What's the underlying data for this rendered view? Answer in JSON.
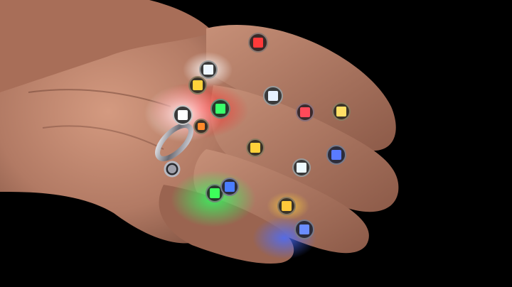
{
  "photo": {
    "subject": "hand-with-tiny-leds",
    "background_color": "#000000",
    "skin_color": "#c98e74",
    "led_count": 18,
    "leds": [
      {
        "name": "led-red-top",
        "color": "#ff3a3a"
      },
      {
        "name": "led-white-1",
        "color": "#eef6ff"
      },
      {
        "name": "led-yellow-1",
        "color": "#ffd23a"
      },
      {
        "name": "led-white-2",
        "color": "#e8f2ff"
      },
      {
        "name": "led-red-2",
        "color": "#ff4a5a"
      },
      {
        "name": "led-yellow-2",
        "color": "#ffe066"
      },
      {
        "name": "led-white-bright",
        "color": "#ffffff"
      },
      {
        "name": "led-green-1",
        "color": "#39ff6a"
      },
      {
        "name": "led-orange-small",
        "color": "#ff8a2a"
      },
      {
        "name": "led-yellow-3",
        "color": "#ffd23a"
      },
      {
        "name": "led-blue-1",
        "color": "#5a7bff"
      },
      {
        "name": "led-white-3",
        "color": "#eefaff"
      },
      {
        "name": "led-green-2",
        "color": "#3dff5a"
      },
      {
        "name": "led-blue-2",
        "color": "#4a7dff"
      },
      {
        "name": "led-yellow-4",
        "color": "#ffc83a"
      },
      {
        "name": "led-blue-3",
        "color": "#6a8dff"
      },
      {
        "name": "led-silver-ring",
        "color": "#c8c8d0"
      },
      {
        "name": "led-silver-chip",
        "color": "#a0a0aa"
      }
    ]
  }
}
